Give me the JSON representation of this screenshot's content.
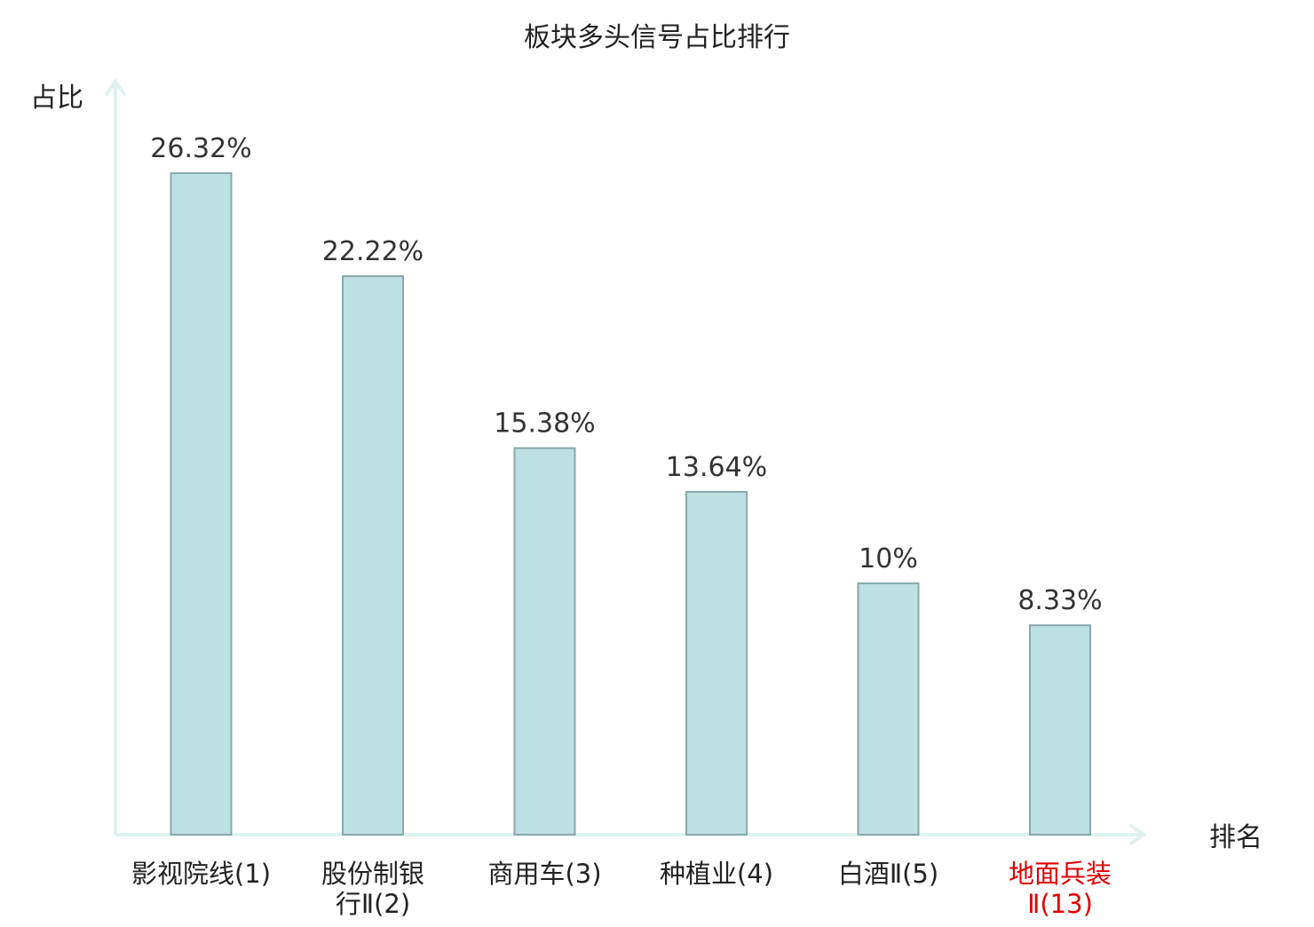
{
  "chart_data": {
    "type": "bar",
    "title": "板块多头信号占比排行",
    "ylabel": "占比",
    "xlabel": "排名",
    "ylim": [
      0,
      30
    ],
    "grid": false,
    "categories": [
      {
        "lines": [
          "影视院线(1)"
        ],
        "highlight": false
      },
      {
        "lines": [
          "股份制银",
          "行Ⅱ(2)"
        ],
        "highlight": false
      },
      {
        "lines": [
          "商用车(3)"
        ],
        "highlight": false
      },
      {
        "lines": [
          "种植业(4)"
        ],
        "highlight": false
      },
      {
        "lines": [
          "白酒Ⅱ(5)"
        ],
        "highlight": false
      },
      {
        "lines": [
          "地面兵装",
          "Ⅱ(13)"
        ],
        "highlight": true
      }
    ],
    "values": [
      26.32,
      22.22,
      15.38,
      13.64,
      10,
      8.33
    ],
    "value_labels": [
      "26.32%",
      "22.22%",
      "15.38%",
      "13.64%",
      "10%",
      "8.33%"
    ],
    "colors": {
      "bar_fill": "#bde0e3",
      "bar_stroke": "#8aa8aa",
      "axis": "#dff1ef",
      "text": "#333333",
      "highlight_text": "#e00000"
    }
  }
}
